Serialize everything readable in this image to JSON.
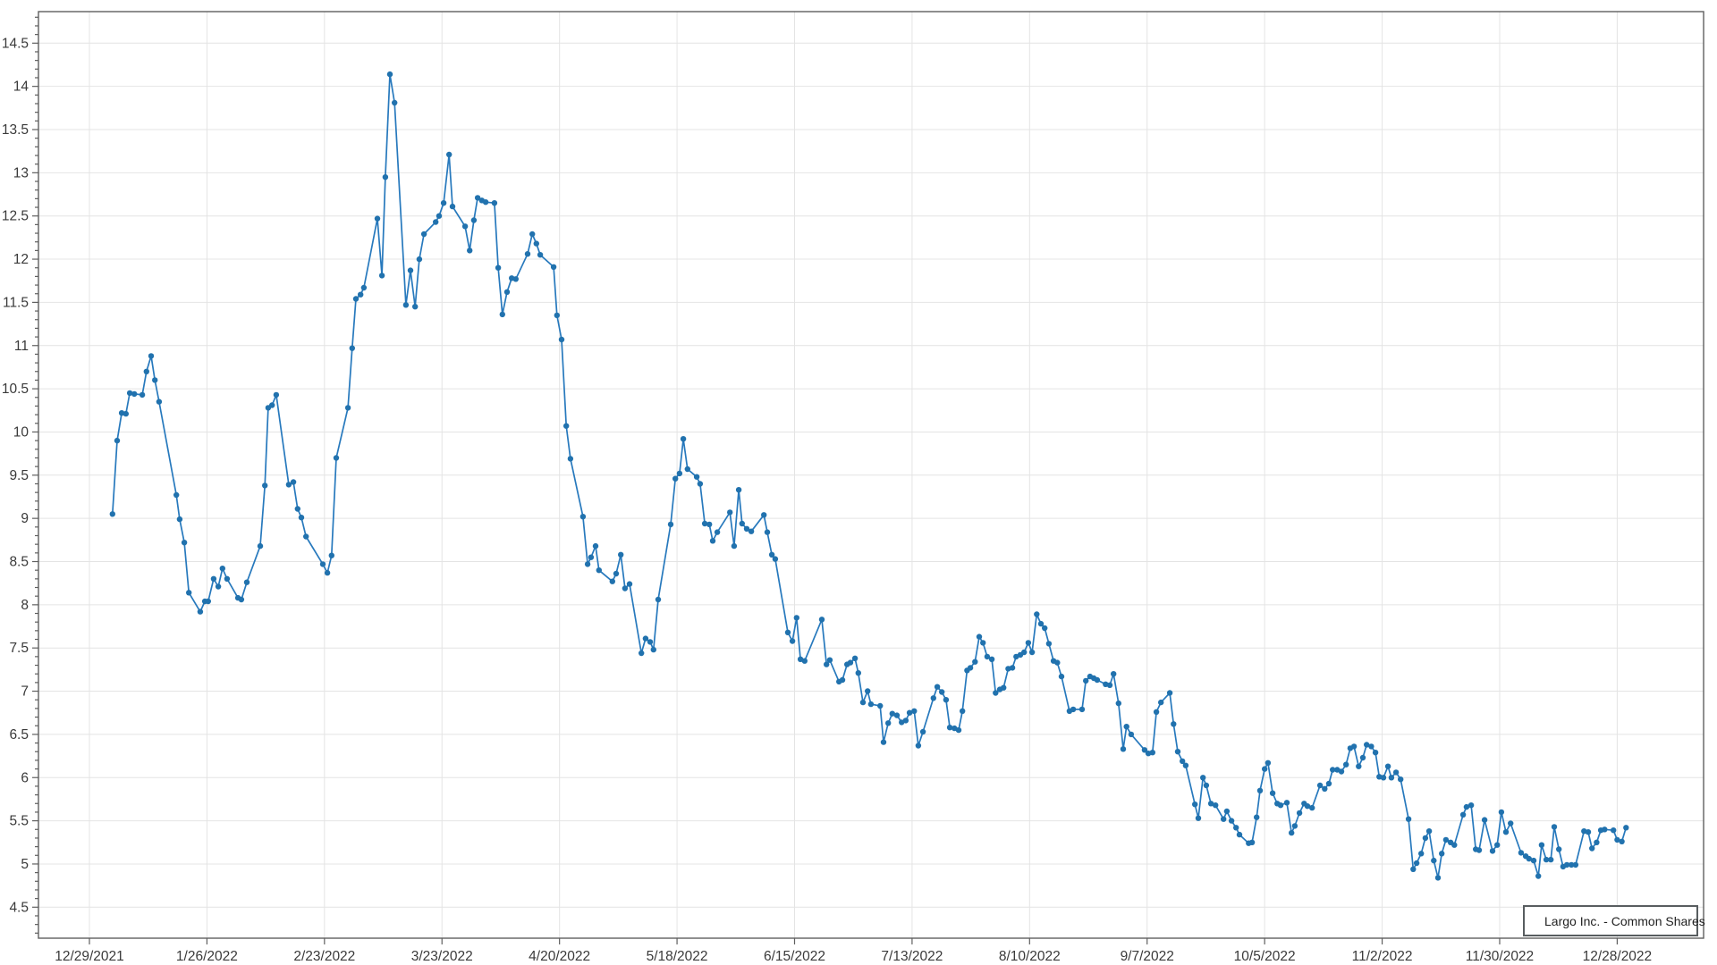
{
  "window": {
    "background": "#ffffff"
  },
  "legend": {
    "position": "bottom-right-inside"
  },
  "chart_data": {
    "type": "line",
    "title": "",
    "xlabel": "",
    "ylabel": "",
    "grid": true,
    "colors": {
      "line": "#2779bd",
      "marker": "#2172ae",
      "gridline": "#e4e4e4",
      "axis": "#5f5f5f",
      "tick_text": "#3a3a3a"
    },
    "y_axis": {
      "min": 4.5,
      "max": 14.5,
      "major_step": 0.5,
      "minor_step": 0.1
    },
    "x_axis": {
      "unit": "days since first tick",
      "tick_interval_days": 28,
      "ticks": [
        {
          "d": 0,
          "label": "12/29/2021"
        },
        {
          "d": 28,
          "label": "1/26/2022"
        },
        {
          "d": 56,
          "label": "2/23/2022"
        },
        {
          "d": 84,
          "label": "3/23/2022"
        },
        {
          "d": 112,
          "label": "4/20/2022"
        },
        {
          "d": 140,
          "label": "5/18/2022"
        },
        {
          "d": 168,
          "label": "6/15/2022"
        },
        {
          "d": 196,
          "label": "7/13/2022"
        },
        {
          "d": 224,
          "label": "8/10/2022"
        },
        {
          "d": 252,
          "label": "9/7/2022"
        },
        {
          "d": 280,
          "label": "10/5/2022"
        },
        {
          "d": 308,
          "label": "11/2/2022"
        },
        {
          "d": 336,
          "label": "11/30/2022"
        },
        {
          "d": 364,
          "label": "12/28/2022"
        }
      ]
    },
    "series": [
      {
        "name": "Largo Inc. - Common Shares",
        "color": "#2779bd",
        "marker": "circle",
        "points": [
          [
            5.5,
            9.05
          ],
          [
            6.6,
            9.9
          ],
          [
            7.7,
            10.22
          ],
          [
            8.7,
            10.21
          ],
          [
            9.6,
            10.45
          ],
          [
            10.7,
            10.44
          ],
          [
            12.6,
            10.43
          ],
          [
            13.6,
            10.7
          ],
          [
            14.7,
            10.88
          ],
          [
            15.6,
            10.6
          ],
          [
            16.6,
            10.35
          ],
          [
            20.7,
            9.27
          ],
          [
            21.5,
            8.99
          ],
          [
            22.6,
            8.72
          ],
          [
            23.7,
            8.14
          ],
          [
            26.4,
            7.92
          ],
          [
            27.5,
            8.04
          ],
          [
            28.3,
            8.04
          ],
          [
            29.6,
            8.3
          ],
          [
            30.7,
            8.21
          ],
          [
            31.7,
            8.42
          ],
          [
            32.8,
            8.3
          ],
          [
            35.4,
            8.08
          ],
          [
            36.2,
            8.06
          ],
          [
            37.5,
            8.26
          ],
          [
            40.7,
            8.68
          ],
          [
            41.8,
            9.38
          ],
          [
            42.6,
            10.28
          ],
          [
            43.5,
            10.31
          ],
          [
            44.5,
            10.43
          ],
          [
            47.5,
            9.39
          ],
          [
            48.6,
            9.42
          ],
          [
            49.6,
            9.11
          ],
          [
            50.5,
            9.01
          ],
          [
            51.6,
            8.79
          ],
          [
            55.6,
            8.47
          ],
          [
            56.7,
            8.37
          ],
          [
            57.7,
            8.57
          ],
          [
            58.8,
            9.7
          ],
          [
            61.6,
            10.28
          ],
          [
            62.6,
            10.97
          ],
          [
            63.5,
            11.54
          ],
          [
            64.6,
            11.59
          ],
          [
            65.4,
            11.67
          ],
          [
            68.6,
            12.47
          ],
          [
            69.7,
            11.81
          ],
          [
            70.5,
            12.95
          ],
          [
            71.6,
            14.14
          ],
          [
            72.7,
            13.81
          ],
          [
            75.4,
            11.47
          ],
          [
            76.5,
            11.87
          ],
          [
            77.6,
            11.45
          ],
          [
            78.6,
            12.0
          ],
          [
            79.7,
            12.29
          ],
          [
            82.5,
            12.43
          ],
          [
            83.3,
            12.5
          ],
          [
            84.4,
            12.65
          ],
          [
            85.7,
            13.21
          ],
          [
            86.5,
            12.61
          ],
          [
            89.5,
            12.38
          ],
          [
            90.6,
            12.1
          ],
          [
            91.6,
            12.45
          ],
          [
            92.5,
            12.71
          ],
          [
            93.5,
            12.68
          ],
          [
            94.4,
            12.66
          ],
          [
            96.5,
            12.65
          ],
          [
            97.4,
            11.9
          ],
          [
            98.4,
            11.36
          ],
          [
            99.5,
            11.62
          ],
          [
            100.6,
            11.78
          ],
          [
            101.6,
            11.77
          ],
          [
            104.4,
            12.06
          ],
          [
            105.5,
            12.29
          ],
          [
            106.5,
            12.18
          ],
          [
            107.4,
            12.05
          ],
          [
            110.6,
            11.91
          ],
          [
            111.4,
            11.35
          ],
          [
            112.5,
            11.07
          ],
          [
            113.6,
            10.07
          ],
          [
            114.6,
            9.69
          ],
          [
            117.6,
            9.02
          ],
          [
            118.7,
            8.47
          ],
          [
            119.5,
            8.55
          ],
          [
            120.6,
            8.68
          ],
          [
            121.4,
            8.4
          ],
          [
            124.6,
            8.27
          ],
          [
            125.5,
            8.36
          ],
          [
            126.6,
            8.58
          ],
          [
            127.6,
            8.19
          ],
          [
            128.7,
            8.24
          ],
          [
            131.5,
            7.44
          ],
          [
            132.5,
            7.61
          ],
          [
            133.6,
            7.57
          ],
          [
            134.4,
            7.48
          ],
          [
            135.5,
            8.06
          ],
          [
            138.5,
            8.93
          ],
          [
            139.6,
            9.46
          ],
          [
            140.6,
            9.52
          ],
          [
            141.5,
            9.92
          ],
          [
            142.5,
            9.57
          ],
          [
            144.7,
            9.48
          ],
          [
            145.5,
            9.4
          ],
          [
            146.6,
            8.94
          ],
          [
            147.7,
            8.93
          ],
          [
            148.5,
            8.74
          ],
          [
            149.6,
            8.84
          ],
          [
            152.6,
            9.07
          ],
          [
            153.6,
            8.68
          ],
          [
            154.7,
            9.33
          ],
          [
            155.5,
            8.94
          ],
          [
            156.6,
            8.88
          ],
          [
            157.7,
            8.85
          ],
          [
            160.7,
            9.04
          ],
          [
            161.5,
            8.84
          ],
          [
            162.6,
            8.58
          ],
          [
            163.4,
            8.53
          ],
          [
            166.4,
            7.68
          ],
          [
            167.5,
            7.58
          ],
          [
            168.5,
            7.85
          ],
          [
            169.4,
            7.37
          ],
          [
            170.4,
            7.35
          ],
          [
            174.5,
            7.83
          ],
          [
            175.6,
            7.31
          ],
          [
            176.4,
            7.36
          ],
          [
            178.6,
            7.11
          ],
          [
            179.4,
            7.13
          ],
          [
            180.5,
            7.31
          ],
          [
            181.3,
            7.33
          ],
          [
            182.4,
            7.38
          ],
          [
            183.2,
            7.21
          ],
          [
            184.3,
            6.87
          ],
          [
            185.4,
            7.0
          ],
          [
            186.2,
            6.85
          ],
          [
            188.4,
            6.83
          ],
          [
            189.2,
            6.41
          ],
          [
            190.3,
            6.63
          ],
          [
            191.3,
            6.74
          ],
          [
            192.4,
            6.72
          ],
          [
            193.5,
            6.64
          ],
          [
            194.5,
            6.66
          ],
          [
            195.4,
            6.75
          ],
          [
            196.5,
            6.77
          ],
          [
            197.5,
            6.37
          ],
          [
            198.6,
            6.53
          ],
          [
            201.1,
            6.92
          ],
          [
            202.0,
            7.05
          ],
          [
            203.1,
            6.99
          ],
          [
            204.1,
            6.9
          ],
          [
            205.0,
            6.58
          ],
          [
            206.1,
            6.57
          ],
          [
            207.1,
            6.55
          ],
          [
            208.0,
            6.77
          ],
          [
            209.1,
            7.24
          ],
          [
            209.9,
            7.27
          ],
          [
            211.0,
            7.34
          ],
          [
            212.0,
            7.63
          ],
          [
            212.9,
            7.56
          ],
          [
            213.9,
            7.4
          ],
          [
            215.0,
            7.37
          ],
          [
            215.9,
            6.98
          ],
          [
            216.9,
            7.02
          ],
          [
            217.8,
            7.04
          ],
          [
            218.9,
            7.26
          ],
          [
            219.9,
            7.27
          ],
          [
            220.8,
            7.4
          ],
          [
            221.8,
            7.42
          ],
          [
            222.7,
            7.45
          ],
          [
            223.7,
            7.56
          ],
          [
            224.6,
            7.45
          ],
          [
            225.7,
            7.89
          ],
          [
            226.7,
            7.78
          ],
          [
            227.6,
            7.73
          ],
          [
            228.6,
            7.55
          ],
          [
            229.7,
            7.35
          ],
          [
            230.6,
            7.33
          ],
          [
            231.6,
            7.17
          ],
          [
            233.5,
            6.77
          ],
          [
            234.4,
            6.79
          ],
          [
            236.5,
            6.79
          ],
          [
            237.4,
            7.12
          ],
          [
            238.4,
            7.17
          ],
          [
            239.3,
            7.15
          ],
          [
            240.1,
            7.13
          ],
          [
            242.1,
            7.08
          ],
          [
            243.1,
            7.07
          ],
          [
            244.0,
            7.2
          ],
          [
            245.2,
            6.86
          ],
          [
            246.3,
            6.33
          ],
          [
            247.1,
            6.59
          ],
          [
            248.2,
            6.5
          ],
          [
            251.4,
            6.32
          ],
          [
            252.3,
            6.28
          ],
          [
            253.3,
            6.29
          ],
          [
            254.2,
            6.76
          ],
          [
            255.3,
            6.87
          ],
          [
            257.4,
            6.98
          ],
          [
            258.3,
            6.62
          ],
          [
            259.3,
            6.3
          ],
          [
            260.4,
            6.19
          ],
          [
            261.2,
            6.14
          ],
          [
            263.4,
            5.69
          ],
          [
            264.2,
            5.53
          ],
          [
            265.3,
            6.0
          ],
          [
            266.1,
            5.91
          ],
          [
            267.2,
            5.7
          ],
          [
            268.3,
            5.68
          ],
          [
            270.2,
            5.52
          ],
          [
            271.0,
            5.61
          ],
          [
            272.1,
            5.5
          ],
          [
            273.2,
            5.42
          ],
          [
            274.0,
            5.34
          ],
          [
            276.2,
            5.24
          ],
          [
            277.0,
            5.25
          ],
          [
            278.1,
            5.54
          ],
          [
            278.9,
            5.85
          ],
          [
            280.0,
            6.1
          ],
          [
            280.8,
            6.17
          ],
          [
            281.9,
            5.82
          ],
          [
            283.0,
            5.7
          ],
          [
            283.8,
            5.68
          ],
          [
            285.3,
            5.71
          ],
          [
            286.4,
            5.36
          ],
          [
            287.2,
            5.44
          ],
          [
            288.3,
            5.59
          ],
          [
            289.4,
            5.7
          ],
          [
            290.2,
            5.67
          ],
          [
            291.3,
            5.65
          ],
          [
            293.2,
            5.91
          ],
          [
            294.3,
            5.87
          ],
          [
            295.3,
            5.93
          ],
          [
            296.2,
            6.09
          ],
          [
            297.3,
            6.09
          ],
          [
            298.3,
            6.07
          ],
          [
            299.4,
            6.15
          ],
          [
            300.4,
            6.34
          ],
          [
            301.3,
            6.36
          ],
          [
            302.4,
            6.13
          ],
          [
            303.4,
            6.23
          ],
          [
            304.3,
            6.38
          ],
          [
            305.4,
            6.36
          ],
          [
            306.4,
            6.29
          ],
          [
            307.3,
            6.01
          ],
          [
            308.3,
            6.0
          ],
          [
            309.4,
            6.13
          ],
          [
            310.2,
            6.0
          ],
          [
            311.3,
            6.06
          ],
          [
            312.4,
            5.98
          ],
          [
            314.3,
            5.52
          ],
          [
            315.4,
            4.94
          ],
          [
            316.2,
            5.01
          ],
          [
            317.3,
            5.12
          ],
          [
            318.3,
            5.3
          ],
          [
            319.2,
            5.38
          ],
          [
            320.3,
            5.04
          ],
          [
            321.3,
            4.84
          ],
          [
            322.2,
            5.12
          ],
          [
            323.2,
            5.28
          ],
          [
            324.3,
            5.25
          ],
          [
            325.2,
            5.22
          ],
          [
            327.3,
            5.57
          ],
          [
            328.1,
            5.66
          ],
          [
            329.2,
            5.68
          ],
          [
            330.3,
            5.17
          ],
          [
            331.1,
            5.16
          ],
          [
            332.4,
            5.51
          ],
          [
            334.3,
            5.15
          ],
          [
            335.4,
            5.22
          ],
          [
            336.4,
            5.6
          ],
          [
            337.5,
            5.37
          ],
          [
            338.6,
            5.47
          ],
          [
            341.1,
            5.13
          ],
          [
            342.2,
            5.09
          ],
          [
            343.0,
            5.06
          ],
          [
            344.1,
            5.04
          ],
          [
            345.2,
            4.86
          ],
          [
            346.0,
            5.22
          ],
          [
            347.1,
            5.05
          ],
          [
            348.2,
            5.05
          ],
          [
            349.0,
            5.43
          ],
          [
            350.1,
            5.17
          ],
          [
            351.1,
            4.97
          ],
          [
            352.0,
            4.99
          ],
          [
            353.1,
            4.99
          ],
          [
            354.1,
            4.99
          ],
          [
            356.1,
            5.38
          ],
          [
            357.1,
            5.37
          ],
          [
            358.0,
            5.18
          ],
          [
            359.1,
            5.25
          ],
          [
            360.1,
            5.39
          ],
          [
            361.0,
            5.4
          ],
          [
            363.1,
            5.39
          ],
          [
            364.0,
            5.28
          ],
          [
            365.1,
            5.26
          ],
          [
            366.1,
            5.42
          ]
        ]
      }
    ]
  }
}
